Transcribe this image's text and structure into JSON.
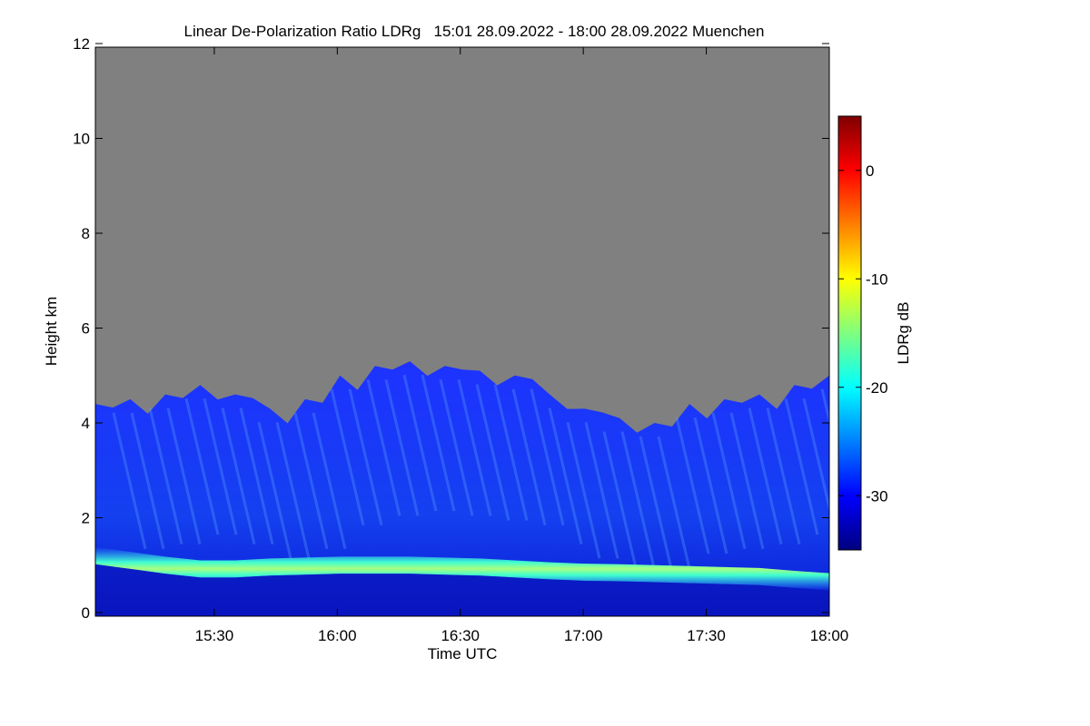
{
  "chart_data": {
    "type": "heatmap",
    "title": "Linear De-Polarization Ratio LDRg   15:01 28.09.2022 - 18:00 28.09.2022 Muenchen",
    "xlabel": "Time UTC",
    "ylabel": "Height km",
    "x_ticks": [
      "15:30",
      "16:00",
      "16:30",
      "17:00",
      "17:30",
      "18:00"
    ],
    "y_ticks": [
      "0",
      "2",
      "4",
      "6",
      "8",
      "10",
      "12"
    ],
    "xlim": [
      "15:01",
      "18:00"
    ],
    "ylim": [
      0,
      12
    ],
    "colorbar": {
      "label": "LDRg dB",
      "ticks": [
        "0",
        "-10",
        "-20",
        "-30"
      ],
      "range": [
        -35,
        5
      ],
      "colormap": [
        "#00007f",
        "#0000ff",
        "#007fff",
        "#00ffff",
        "#7fff7f",
        "#ffff00",
        "#ff7f00",
        "#ff0000",
        "#7f0000"
      ]
    },
    "no_data_color": "#808080",
    "signal_top_km": [
      4.4,
      4.5,
      4.6,
      4.8,
      4.6,
      4.3,
      4.5,
      5.0,
      5.2,
      5.3,
      5.2,
      5.1,
      5.0,
      4.6,
      4.3,
      4.1,
      4.0,
      4.4,
      4.5,
      4.6,
      4.8,
      5.0
    ],
    "layer_center_km": [
      1.2,
      1.1,
      1.0,
      0.92,
      0.92,
      0.96,
      0.98,
      1.0,
      1.0,
      1.0,
      0.98,
      0.96,
      0.92,
      0.88,
      0.85,
      0.84,
      0.82,
      0.8,
      0.78,
      0.76,
      0.7,
      0.65
    ],
    "background_ldr_db": -31,
    "layer_ldr_db": -21
  }
}
